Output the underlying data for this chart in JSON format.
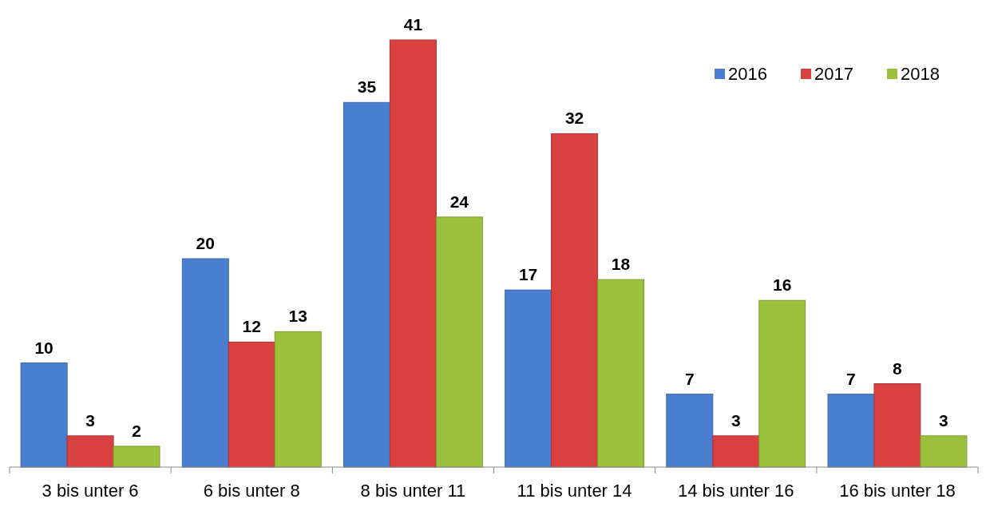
{
  "chart_data": {
    "type": "bar",
    "categories": [
      "3 bis unter 6",
      "6 bis unter 8",
      "8 bis unter 11",
      "11 bis unter 14",
      "14 bis unter 16",
      "16 bis unter 18"
    ],
    "series": [
      {
        "name": "2016",
        "color": "#4a7fd0",
        "values": [
          10,
          20,
          35,
          17,
          7,
          7
        ]
      },
      {
        "name": "2017",
        "color": "#d94040",
        "values": [
          3,
          12,
          41,
          32,
          3,
          8
        ]
      },
      {
        "name": "2018",
        "color": "#9bc13c",
        "values": [
          2,
          13,
          24,
          18,
          16,
          3
        ]
      }
    ],
    "data_labels": true,
    "legend": "top right"
  }
}
